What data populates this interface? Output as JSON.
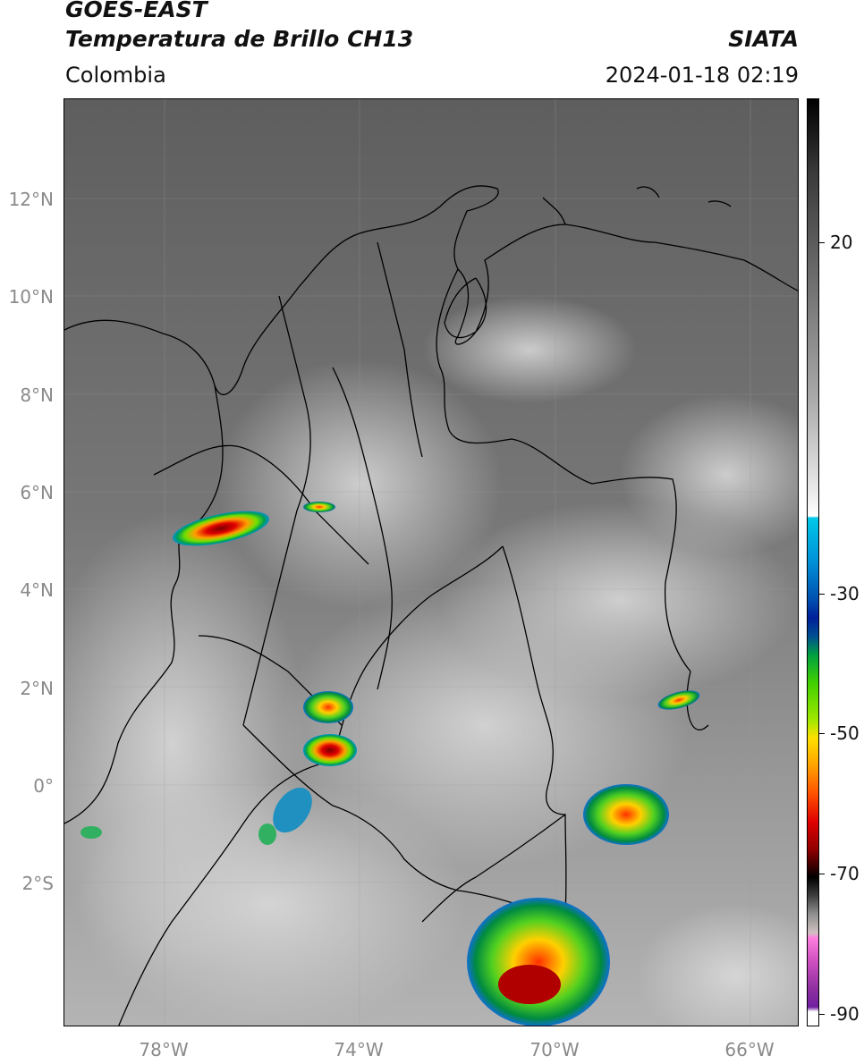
{
  "title": {
    "satellite": "GOES-EAST",
    "product": "Temperatura de Brillo CH13",
    "region": "Colombia",
    "agency": "SIATA",
    "datetime": "2024-01-18 02:19"
  },
  "axes": {
    "lat_labels": [
      "12°N",
      "10°N",
      "8°N",
      "6°N",
      "4°N",
      "2°N",
      "0°",
      "2°S"
    ],
    "lon_labels": [
      "78°W",
      "74°W",
      "70°W",
      "66°W"
    ]
  },
  "colorbar": {
    "labels": [
      "20",
      "-30",
      "-50",
      "-70",
      "-90"
    ],
    "stops": [
      "#ffffff",
      "#d0d0d0",
      "#909090",
      "#505050",
      "#101010",
      "#00c8e8",
      "#0070c0",
      "#00209a",
      "#00a040",
      "#60e000",
      "#ffe000",
      "#ff8000",
      "#e00000",
      "#600000",
      "#000000",
      "#707070",
      "#b0b0b0",
      "#ff60d0",
      "#8020a0",
      "#ffffff"
    ]
  },
  "map_colors": {
    "background_gray": "#6e6e6e",
    "border": "#000000"
  }
}
